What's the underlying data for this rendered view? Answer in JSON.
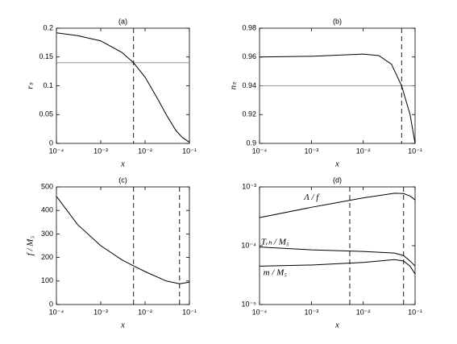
{
  "chart_data": [
    {
      "type": "line",
      "title": "(a)",
      "x_label": "x",
      "y_label": "rₛ",
      "xscale": "log",
      "yscale": "linear",
      "x": [
        0.0001,
        0.0003,
        0.001,
        0.003,
        0.0055,
        0.01,
        0.02,
        0.03,
        0.05,
        0.07,
        0.1
      ],
      "series": [
        {
          "color": "#000000",
          "values": [
            0.192,
            0.187,
            0.178,
            0.158,
            0.14,
            0.115,
            0.075,
            0.05,
            0.022,
            0.01,
            0.002
          ]
        }
      ],
      "hlines": [
        0.14
      ],
      "vlines": [
        0.0055
      ],
      "xlim": [
        0.0001,
        0.1
      ],
      "ylim": [
        0,
        0.2
      ],
      "xticks": [
        {
          "value": 0.0001,
          "label": "10⁻⁴"
        },
        {
          "value": 0.001,
          "label": "10⁻³"
        },
        {
          "value": 0.01,
          "label": "10⁻²"
        },
        {
          "value": 0.1,
          "label": "10⁻¹"
        }
      ],
      "yticks": [
        0,
        0.05,
        0.1,
        0.15,
        0.2
      ]
    },
    {
      "type": "line",
      "title": "(b)",
      "x_label": "x",
      "y_label": "nₛ",
      "xscale": "log",
      "yscale": "linear",
      "x": [
        0.0001,
        0.001,
        0.01,
        0.02,
        0.035,
        0.055,
        0.08,
        0.1
      ],
      "series": [
        {
          "color": "#000000",
          "values": [
            0.96,
            0.9605,
            0.962,
            0.961,
            0.955,
            0.94,
            0.92,
            0.9
          ]
        }
      ],
      "hlines": [
        0.94
      ],
      "vlines": [
        0.055
      ],
      "xlim": [
        0.0001,
        0.1
      ],
      "ylim": [
        0.9,
        0.98
      ],
      "xticks": [
        {
          "value": 0.0001,
          "label": "10⁻⁴"
        },
        {
          "value": 0.001,
          "label": "10⁻³"
        },
        {
          "value": 0.01,
          "label": "10⁻²"
        },
        {
          "value": 0.1,
          "label": "10⁻¹"
        }
      ],
      "yticks": [
        0.9,
        0.92,
        0.94,
        0.96,
        0.98
      ]
    },
    {
      "type": "line",
      "title": "(c)",
      "x_label": "x",
      "y_label": "f / M₅",
      "xscale": "log",
      "yscale": "linear",
      "x": [
        0.0001,
        0.0003,
        0.001,
        0.003,
        0.0055,
        0.01,
        0.03,
        0.06,
        0.1
      ],
      "series": [
        {
          "color": "#000000",
          "values": [
            460,
            340,
            250,
            190,
            164,
            140,
            100,
            88,
            95
          ]
        }
      ],
      "hlines": [],
      "vlines": [
        0.0055,
        0.06
      ],
      "xlim": [
        0.0001,
        0.1
      ],
      "ylim": [
        0,
        500
      ],
      "xticks": [
        {
          "value": 0.0001,
          "label": "10⁻⁴"
        },
        {
          "value": 0.001,
          "label": "10⁻³"
        },
        {
          "value": 0.01,
          "label": "10⁻²"
        },
        {
          "value": 0.1,
          "label": "10⁻¹"
        }
      ],
      "yticks": [
        0,
        100,
        200,
        300,
        400,
        500
      ]
    },
    {
      "type": "line",
      "title": "(d)",
      "x_label": "x",
      "xscale": "log",
      "yscale": "log",
      "x": [
        0.0001,
        0.001,
        0.01,
        0.04,
        0.06,
        0.08,
        0.1
      ],
      "series": [
        {
          "name": "Λ / f",
          "color": "#000000",
          "values": [
            0.0003,
            0.00045,
            0.00065,
            0.00078,
            0.00077,
            0.0007,
            0.0006
          ]
        },
        {
          "name": "Tᵣₕ / M₅",
          "color": "#000000",
          "values": [
            9.5e-05,
            8.5e-05,
            8e-05,
            7.5e-05,
            6.8e-05,
            5.5e-05,
            4.5e-05
          ]
        },
        {
          "name": "m / M₅",
          "color": "#000000",
          "values": [
            4.5e-05,
            4.7e-05,
            5.2e-05,
            5.8e-05,
            5.5e-05,
            4.5e-05,
            3.3e-05
          ]
        }
      ],
      "hlines": [],
      "vlines": [
        0.0055,
        0.06
      ],
      "xlim": [
        0.0001,
        0.1
      ],
      "ylim": [
        1e-05,
        0.001
      ],
      "xticks": [
        {
          "value": 0.0001,
          "label": "10⁻⁴"
        },
        {
          "value": 0.001,
          "label": "10⁻³"
        },
        {
          "value": 0.01,
          "label": "10⁻²"
        },
        {
          "value": 0.1,
          "label": "10⁻¹"
        }
      ],
      "yticks": [
        {
          "value": 1e-05,
          "label": "10⁻⁵"
        },
        {
          "value": 0.0001,
          "label": "10⁻⁴"
        },
        {
          "value": 0.001,
          "label": "10⁻³"
        }
      ]
    }
  ]
}
